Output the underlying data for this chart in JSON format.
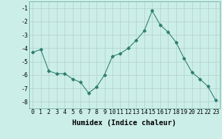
{
  "x": [
    0,
    1,
    2,
    3,
    4,
    5,
    6,
    7,
    8,
    9,
    10,
    11,
    12,
    13,
    14,
    15,
    16,
    17,
    18,
    19,
    20,
    21,
    22,
    23
  ],
  "y": [
    -4.3,
    -4.1,
    -5.7,
    -5.9,
    -5.9,
    -6.3,
    -6.55,
    -7.35,
    -6.9,
    -6.0,
    -4.6,
    -4.4,
    -4.0,
    -3.4,
    -2.7,
    -1.2,
    -2.25,
    -2.8,
    -3.55,
    -4.75,
    -5.8,
    -6.3,
    -6.85,
    -7.9
  ],
  "line_color": "#2d7d6e",
  "marker": "D",
  "marker_size": 2.5,
  "bg_color": "#cceee8",
  "grid_color": "#b0cfc9",
  "xlabel": "Humidex (Indice chaleur)",
  "ylim": [
    -8.5,
    -0.5
  ],
  "xlim": [
    -0.5,
    23.5
  ],
  "yticks": [
    -8,
    -7,
    -6,
    -5,
    -4,
    -3,
    -2,
    -1
  ],
  "xticks": [
    0,
    1,
    2,
    3,
    4,
    5,
    6,
    7,
    8,
    9,
    10,
    11,
    12,
    13,
    14,
    15,
    16,
    17,
    18,
    19,
    20,
    21,
    22,
    23
  ],
  "tick_fontsize": 6,
  "label_fontsize": 7.5
}
